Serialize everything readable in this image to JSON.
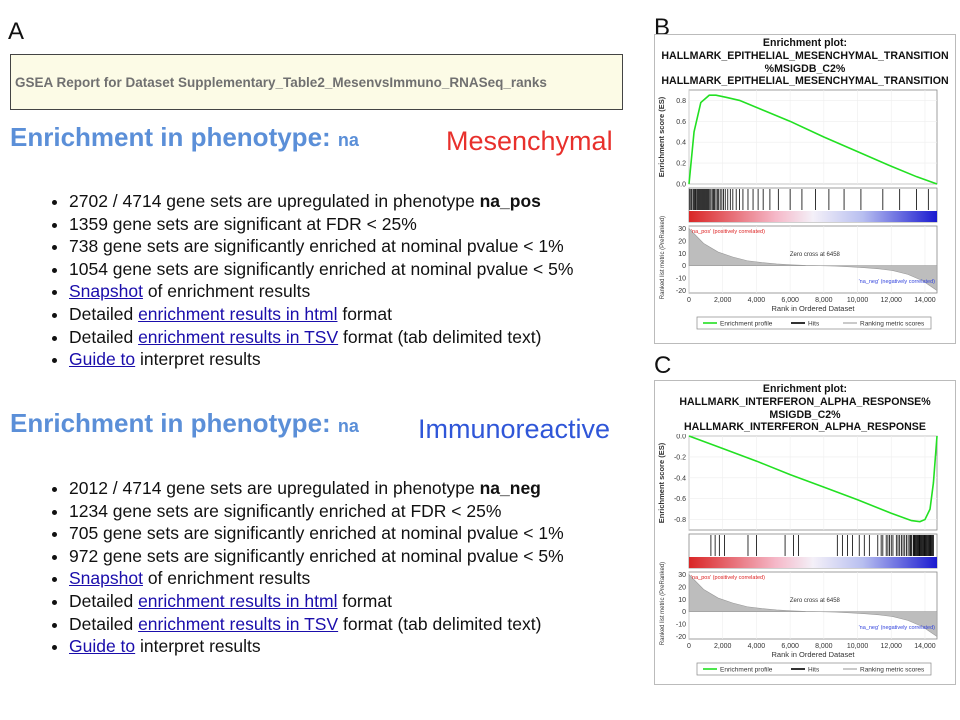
{
  "panel_labels": {
    "a": "A",
    "b": "B",
    "c": "C"
  },
  "report_title": "GSEA Report for Dataset Supplementary_Table2_MesenvsImmuno_RNASeq_ranks",
  "sections": [
    {
      "heading": "Enrichment in phenotype:",
      "heading_suffix": "na",
      "tag": "Mesenchymal",
      "tag_color": "#e8302c",
      "items": [
        {
          "pre": "2702 / 4714 gene sets are upregulated in phenotype ",
          "bold": "na_pos"
        },
        {
          "text": "1359 gene sets are significant at FDR < 25%"
        },
        {
          "text": "738 gene sets are significantly enriched at nominal pvalue < 1%"
        },
        {
          "text": "1054 gene sets are significantly enriched at nominal pvalue < 5%"
        },
        {
          "link": "Snapshot",
          "post": " of enrichment results"
        },
        {
          "pre": "Detailed ",
          "link": "enrichment results in html",
          "post": " format"
        },
        {
          "pre": "Detailed ",
          "link": "enrichment results in TSV",
          "post": " format (tab delimited text)"
        },
        {
          "link": "Guide to",
          "post": " interpret results"
        }
      ]
    },
    {
      "heading": "Enrichment in phenotype:",
      "heading_suffix": "na",
      "tag": "Immunoreactive",
      "tag_color": "#2f56d8",
      "items": [
        {
          "pre": "2012 / 4714 gene sets are upregulated in phenotype ",
          "bold": "na_neg"
        },
        {
          "text": "1234 gene sets are significantly enriched at FDR < 25%"
        },
        {
          "text": "705 gene sets are significantly enriched at nominal pvalue < 1%"
        },
        {
          "text": "972 gene sets are significantly enriched at nominal pvalue < 5%"
        },
        {
          "link": "Snapshot",
          "post": " of enrichment results"
        },
        {
          "pre": "Detailed ",
          "link": "enrichment results in html",
          "post": " format"
        },
        {
          "pre": "Detailed ",
          "link": "enrichment results in TSV",
          "post": " format (tab delimited text)"
        },
        {
          "link": "Guide to",
          "post": " interpret results"
        }
      ]
    }
  ],
  "chart_data": [
    {
      "type": "line",
      "title": [
        "Enrichment plot:",
        "HALLMARK_EPITHELIAL_MESENCHYMAL_TRANSITION",
        "%MSIGDB_C2%",
        "HALLMARK_EPITHELIAL_MESENCHYMAL_TRANSITION"
      ],
      "ylabel": "Enrichment score (ES)",
      "ylabel2": "Ranked list metric (PreRanked)",
      "xlabel": "Rank in Ordered Dataset",
      "x_ticks": [
        0,
        2000,
        4000,
        6000,
        8000,
        10000,
        12000,
        14000
      ],
      "x_tick_labels": [
        "0",
        "2,000",
        "4,000",
        "6,000",
        "8,000",
        "10,000",
        "12,000",
        "14,000"
      ],
      "xlim": [
        0,
        14714
      ],
      "ylim": [
        0,
        0.9
      ],
      "y_ticks": [
        0.0,
        0.2,
        0.4,
        0.6,
        0.8
      ],
      "y_tick_labels": [
        "0.0",
        "0.2",
        "0.4",
        "0.6",
        "0.8"
      ],
      "metric_ticks": [
        -20,
        -10,
        0,
        10,
        20,
        30
      ],
      "metric_tick_labels": [
        "-20",
        "-10",
        "0",
        "10",
        "20",
        "30"
      ],
      "metric_ylim": [
        -22,
        32
      ],
      "es_curve": {
        "x": [
          0,
          300,
          700,
          1200,
          1600,
          2200,
          3000,
          4500,
          6000,
          8000,
          10000,
          12000,
          13500,
          14714
        ],
        "y": [
          0.0,
          0.5,
          0.78,
          0.85,
          0.85,
          0.83,
          0.8,
          0.7,
          0.6,
          0.45,
          0.31,
          0.17,
          0.07,
          0.0
        ]
      },
      "hits": [
        50,
        120,
        180,
        260,
        320,
        380,
        430,
        500,
        560,
        620,
        680,
        740,
        800,
        860,
        920,
        980,
        1040,
        1100,
        1160,
        1230,
        1300,
        1380,
        1450,
        1520,
        1600,
        1680,
        1760,
        1850,
        1950,
        2050,
        2150,
        2300,
        2450,
        2600,
        2800,
        3000,
        3200,
        3500,
        3800,
        4100,
        4400,
        4800,
        5300,
        6000,
        6700,
        7500,
        8300,
        9200,
        10200,
        11500,
        12500,
        13500,
        14200
      ],
      "zero_cross": "Zero cross at 6458",
      "pos_label": "'na_pos' (positively correlated)",
      "neg_label": "'na_neg' (negatively correlated)",
      "legend": [
        "Enrichment profile",
        "Hits",
        "Ranking metric scores"
      ],
      "es_color": "#22e022"
    },
    {
      "type": "line",
      "title": [
        "Enrichment plot:",
        "HALLMARK_INTERFERON_ALPHA_RESPONSE%",
        "MSIGDB_C2%",
        "HALLMARK_INTERFERON_ALPHA_RESPONSE"
      ],
      "ylabel": "Enrichment score (ES)",
      "ylabel2": "Ranked list metric (PreRanked)",
      "xlabel": "Rank in Ordered Dataset",
      "x_ticks": [
        0,
        2000,
        4000,
        6000,
        8000,
        10000,
        12000,
        14000
      ],
      "x_tick_labels": [
        "0",
        "2,000",
        "4,000",
        "6,000",
        "8,000",
        "10,000",
        "12,000",
        "14,000"
      ],
      "xlim": [
        0,
        14714
      ],
      "ylim": [
        -0.9,
        0.0
      ],
      "y_ticks": [
        0.0,
        -0.2,
        -0.4,
        -0.6,
        -0.8
      ],
      "y_tick_labels": [
        "0.0",
        "-0.2",
        "-0.4",
        "-0.6",
        "-0.8"
      ],
      "metric_ticks": [
        -20,
        -10,
        0,
        10,
        20,
        30
      ],
      "metric_tick_labels": [
        "-20",
        "-10",
        "0",
        "10",
        "20",
        "30"
      ],
      "metric_ylim": [
        -22,
        32
      ],
      "es_curve": {
        "x": [
          0,
          2000,
          4000,
          6000,
          8000,
          10000,
          12000,
          13200,
          13700,
          14000,
          14300,
          14500,
          14714
        ],
        "y": [
          0.0,
          -0.12,
          -0.24,
          -0.37,
          -0.49,
          -0.61,
          -0.74,
          -0.81,
          -0.82,
          -0.8,
          -0.7,
          -0.45,
          0.0
        ]
      },
      "hits": [
        1300,
        1550,
        1800,
        2100,
        3500,
        4000,
        5700,
        6200,
        6500,
        8800,
        9100,
        9400,
        9700,
        10100,
        10400,
        10700,
        11200,
        11400,
        11500,
        11700,
        11800,
        11900,
        12000,
        12100,
        12300,
        12400,
        12500,
        12600,
        12700,
        12800,
        12900,
        13000,
        13100,
        13150,
        13200,
        13300,
        13350,
        13400,
        13450,
        13500,
        13550,
        13600,
        13650,
        13700,
        13750,
        13800,
        13850,
        13900,
        13950,
        14000,
        14050,
        14100,
        14150,
        14200,
        14250,
        14300,
        14350,
        14400,
        14450,
        14500
      ],
      "zero_cross": "Zero cross at 6458",
      "pos_label": "'na_pos' (positively correlated)",
      "neg_label": "'na_neg' (negatively correlated)",
      "legend": [
        "Enrichment profile",
        "Hits",
        "Ranking metric scores"
      ],
      "es_color": "#22e022"
    }
  ]
}
